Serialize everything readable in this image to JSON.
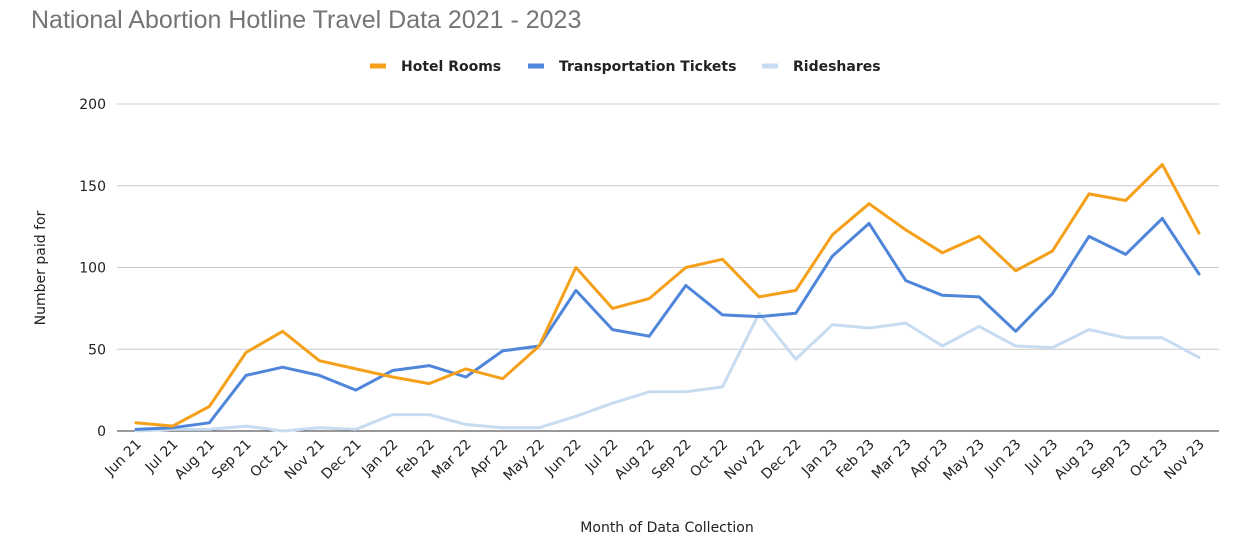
{
  "chart_data": {
    "type": "line",
    "title": "National Abortion Hotline Travel Data 2021 - 2023",
    "xlabel": "Month of Data Collection",
    "ylabel": "Number paid for",
    "ylim": [
      0,
      200
    ],
    "yticks": [
      0,
      50,
      100,
      150,
      200
    ],
    "grid": true,
    "legend_position": "top",
    "categories": [
      "Jun 21",
      "Jul 21",
      "Aug 21",
      "Sep 21",
      "Oct 21",
      "Nov 21",
      "Dec 21",
      "Jan 22",
      "Feb 22",
      "Mar 22",
      "Apr 22",
      "May 22",
      "Jun 22",
      "Jul 22",
      "Aug 22",
      "Sep 22",
      "Oct 22",
      "Nov 22",
      "Dec 22",
      "Jan 23",
      "Feb 23",
      "Mar 23",
      "Apr 23",
      "May 23",
      "Jun 23",
      "Jul 23",
      "Aug 23",
      "Sep 23",
      "Oct 23",
      "Nov 23"
    ],
    "series": [
      {
        "name": "Hotel Rooms",
        "color": "#f5a01a",
        "values": [
          5,
          3,
          15,
          48,
          61,
          43,
          38,
          33,
          29,
          38,
          32,
          52,
          100,
          75,
          81,
          100,
          105,
          82,
          86,
          120,
          139,
          123,
          109,
          119,
          98,
          110,
          145,
          141,
          163,
          121
        ]
      },
      {
        "name": "Transportation Tickets",
        "color": "#4f86da",
        "values": [
          1,
          2,
          5,
          34,
          39,
          34,
          25,
          37,
          40,
          33,
          49,
          52,
          86,
          62,
          58,
          89,
          71,
          70,
          72,
          107,
          127,
          92,
          83,
          82,
          61,
          84,
          119,
          108,
          130,
          96
        ]
      },
      {
        "name": "Rideshares",
        "color": "#c7dcf1",
        "values": [
          0,
          1,
          1,
          3,
          0,
          2,
          1,
          10,
          10,
          4,
          2,
          2,
          9,
          17,
          24,
          24,
          27,
          72,
          44,
          65,
          63,
          66,
          52,
          64,
          52,
          51,
          62,
          57,
          57,
          45
        ]
      }
    ]
  }
}
